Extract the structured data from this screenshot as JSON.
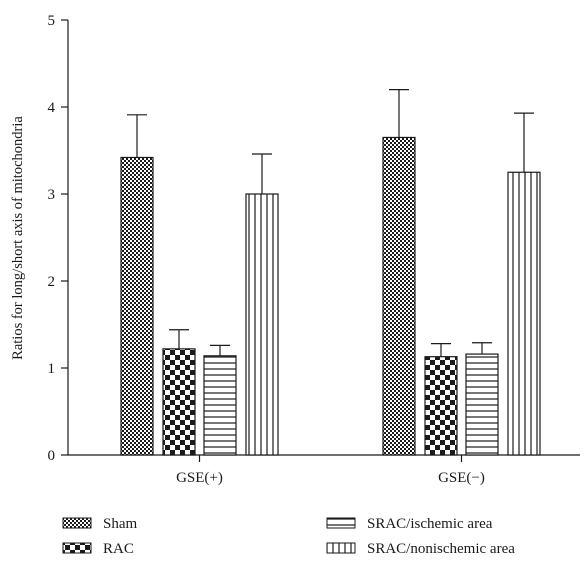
{
  "chart_data": {
    "type": "bar",
    "title": "",
    "xlabel": "",
    "ylabel": "Ratios for long/short axis of mitochondria",
    "ylim": [
      0,
      5
    ],
    "yticks": [
      0,
      1,
      2,
      3,
      4,
      5
    ],
    "grid": false,
    "legend_position": "bottom",
    "categories": [
      "GSE(+)",
      "GSE(−)"
    ],
    "series": [
      {
        "name": "Sham",
        "values": [
          3.42,
          3.65
        ],
        "errors": [
          0.49,
          0.55
        ],
        "pattern": "fine-checker"
      },
      {
        "name": "RAC",
        "values": [
          1.22,
          1.13
        ],
        "errors": [
          0.22,
          0.15
        ],
        "pattern": "coarse-checker"
      },
      {
        "name": "SRAC/ischemic area",
        "values": [
          1.14,
          1.16
        ],
        "errors": [
          0.12,
          0.13
        ],
        "pattern": "horizontal-lines"
      },
      {
        "name": "SRAC/nonischemic area",
        "values": [
          3.0,
          3.25
        ],
        "errors": [
          0.46,
          0.68
        ],
        "pattern": "vertical-lines"
      }
    ]
  },
  "legend": {
    "sham": "Sham",
    "rac": "RAC",
    "srac_ischemic": "SRAC/ischemic area",
    "srac_nonischemic": "SRAC/nonischemic area"
  },
  "colors": {
    "ink": "#1a1a1a",
    "background": "#ffffff"
  }
}
